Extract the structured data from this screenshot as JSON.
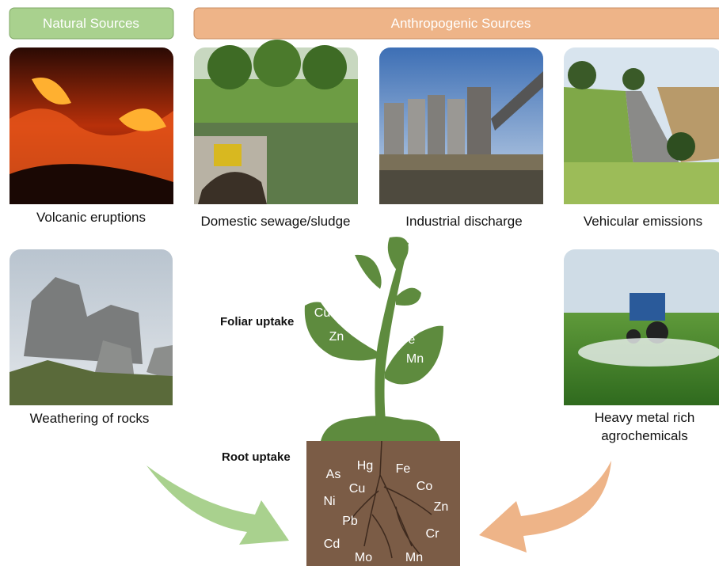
{
  "header": {
    "natural": "Natural Sources",
    "anthropogenic": "Anthropogenic Sources"
  },
  "sources": [
    {
      "lines": [
        "Volcanic eruptions"
      ]
    },
    {
      "lines": [
        "Domestic sewage/sludge"
      ]
    },
    {
      "lines": [
        "Industrial discharge"
      ]
    },
    {
      "lines": [
        "Vehicular emissions"
      ]
    },
    {
      "lines": [
        "Weathering of rocks"
      ]
    },
    {
      "lines": [
        "Heavy metal rich",
        "agrochemicals"
      ]
    }
  ],
  "plant": {
    "foliar_label": "Foliar uptake",
    "root_label": "Root uptake",
    "leaf_elements": [
      "Cu",
      "Zn",
      "Fe",
      "Mn"
    ],
    "soil_elements": [
      "As",
      "Hg",
      "Cu",
      "Fe",
      "Co",
      "Ni",
      "Zn",
      "Pb",
      "Cr",
      "Cd",
      "Mo",
      "Mn"
    ]
  }
}
